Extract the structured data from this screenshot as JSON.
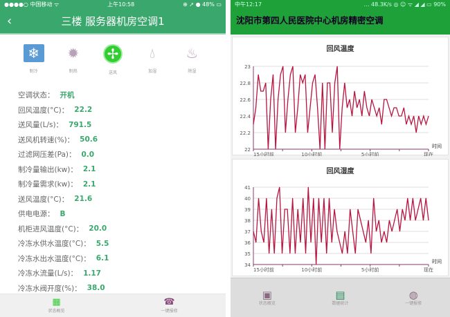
{
  "left": {
    "status": {
      "carrier": "●●●●○ 中国移动 ᯤ",
      "time": "上午10:58",
      "battery": "⊕ ➚ ● 48% ▭"
    },
    "title": "三楼 服务器机房空调1",
    "back_icon": "chevron-left",
    "modes": [
      {
        "label": "制冷",
        "icon": "snowflake",
        "active": false
      },
      {
        "label": "制热",
        "icon": "sun",
        "active": false
      },
      {
        "label": "送风",
        "icon": "fan",
        "active": true
      },
      {
        "label": "加湿",
        "icon": "droplet",
        "active": false
      },
      {
        "label": "除湿",
        "icon": "dehumidify",
        "active": false
      }
    ],
    "rows": [
      {
        "label": "空调状态：",
        "value": "开机"
      },
      {
        "label": "回风温度(°C)：",
        "value": "22.2"
      },
      {
        "label": "送风量(L/s)：",
        "value": "791.5"
      },
      {
        "label": "送风机转速(%)：",
        "value": "50.6"
      },
      {
        "label": "过滤网压差(Pa)：",
        "value": "0.0"
      },
      {
        "label": "制冷量输出(kw)：",
        "value": "2.1"
      },
      {
        "label": "制冷量需求(kw)：",
        "value": "2.1"
      },
      {
        "label": "送风温度(°C)：",
        "value": "21.6"
      },
      {
        "label": "供电电源：",
        "value": "B"
      },
      {
        "label": "机柜进风温度(°C)：",
        "value": "20.0"
      },
      {
        "label": "冷冻水供水温度(°C)：",
        "value": "5.5"
      },
      {
        "label": "冷冻水出水温度(°C)：",
        "value": "6.1"
      },
      {
        "label": "冷冻水流量(L/s)：",
        "value": "1.17"
      },
      {
        "label": "冷冻水阀开度(%)：",
        "value": "38.0"
      }
    ],
    "nav": [
      {
        "label": "状态概览",
        "icon": "grid"
      },
      {
        "label": "一键报修",
        "icon": "phone"
      }
    ]
  },
  "right": {
    "status": {
      "time": "中午12:17",
      "net": "… 48.3K/s ◎ ☺ ᯤ ◢ ◢ ▭ 90%"
    },
    "title": "沈阳市第四人民医院中心机房精密空调",
    "nav": [
      {
        "label": "状态概览",
        "icon": "monitor"
      },
      {
        "label": "数据统计",
        "icon": "chart"
      },
      {
        "label": "一键报修",
        "icon": "headset"
      }
    ]
  },
  "colors": {
    "left_header": "#3aa86c",
    "right_header": "#1fa13a",
    "line": "#b8123e",
    "value": "#3aa86c"
  },
  "chart_data": [
    {
      "type": "line",
      "title": "回风温度",
      "xlabel": "时间",
      "ylabel": "",
      "ylim": [
        22,
        23
      ],
      "yticks": [
        "22",
        "22.2",
        "22.4",
        "22.6",
        "22.8",
        "23"
      ],
      "xticks": [
        "15小时前",
        "10小时前",
        "5小时前",
        "现在"
      ],
      "xlim": [
        15,
        0
      ],
      "grid": true,
      "values": [
        22.3,
        22.5,
        22.9,
        22.7,
        22.7,
        22.8,
        22.0,
        22.6,
        22.9,
        22.0,
        22.6,
        22.9,
        23.0,
        22.2,
        22.6,
        22.9,
        23.0,
        22.2,
        22.5,
        22.9,
        22.8,
        22.9,
        22.2,
        22.5,
        22.8,
        22.9,
        22.5,
        22.0,
        22.8,
        22.0,
        22.8,
        22.8,
        22.2,
        22.8,
        23.0,
        22.0,
        22.5,
        22.8,
        22.5,
        22.6,
        22.4,
        22.7,
        22.5,
        22.6,
        22.4,
        22.7,
        22.5,
        22.4,
        22.6,
        22.5,
        22.4,
        22.5,
        22.3,
        22.6,
        22.6,
        22.5,
        22.4,
        22.5,
        22.5,
        22.4,
        22.4,
        22.5,
        22.3,
        22.4,
        22.3,
        22.4,
        22.2,
        22.4,
        22.3,
        22.4,
        22.3,
        22.4
      ]
    },
    {
      "type": "line",
      "title": "回风湿度",
      "xlabel": "时间",
      "ylabel": "",
      "ylim": [
        34,
        41
      ],
      "yticks": [
        "34",
        "35",
        "36",
        "37",
        "38",
        "39",
        "40",
        "41"
      ],
      "xticks": [
        "15小时前",
        "10小时前",
        "5小时前",
        "现在"
      ],
      "xlim": [
        15,
        0
      ],
      "grid": true,
      "values": [
        37,
        36,
        40,
        37,
        36,
        40,
        35,
        39,
        35,
        40,
        41,
        35,
        39,
        39,
        35,
        40,
        35,
        39,
        36,
        40,
        35,
        41,
        36,
        40,
        34,
        40,
        36,
        40,
        35,
        40,
        36,
        39,
        37,
        36,
        35,
        37,
        35,
        39,
        37,
        35,
        39,
        38,
        37,
        36,
        38,
        35,
        40,
        37,
        38,
        36,
        37,
        36,
        38,
        37,
        38,
        39,
        37,
        39,
        38,
        40,
        38,
        40,
        38,
        39,
        40,
        38,
        40,
        38
      ]
    }
  ]
}
